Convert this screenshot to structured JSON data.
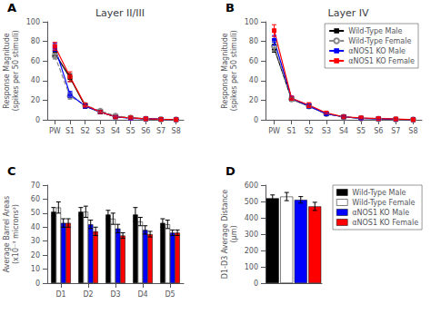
{
  "chart_data": [
    {
      "type": "line",
      "title": "Layer II/III",
      "annotations": [
        "A"
      ],
      "categories": [
        "PW",
        "S1",
        "S2",
        "S3",
        "S4",
        "S5",
        "S6",
        "S7",
        "S8"
      ],
      "ylabel": "Response Magnitude\n(spikes per 50 stimuli)",
      "ylim": [
        0,
        100
      ],
      "yticks": [
        0,
        20,
        40,
        60,
        80,
        100
      ],
      "grid": false,
      "series": [
        {
          "color": "#000000",
          "marker": "square",
          "line_style": "solid",
          "values": [
            68,
            43,
            14,
            8,
            3,
            2,
            1,
            0.5,
            0.3
          ],
          "errors": [
            3,
            4,
            2,
            1.5,
            0.8,
            0.5,
            0.3,
            0.2,
            0.1
          ]
        },
        {
          "color": "#888888",
          "marker": "open_circle",
          "line_style": "dashed",
          "values": [
            65,
            24,
            15,
            9,
            4,
            2,
            1,
            0.5,
            0.3
          ],
          "errors": [
            3,
            3,
            2,
            1.5,
            0.8,
            0.5,
            0.3,
            0.2,
            0.1
          ]
        },
        {
          "color": "#0000FF",
          "marker": "square",
          "line_style": "solid",
          "values": [
            74,
            26,
            14,
            8,
            3,
            1.5,
            1,
            0.5,
            0.2
          ],
          "errors": [
            4,
            3,
            2,
            1.5,
            0.8,
            0.4,
            0.3,
            0.2,
            0.1
          ]
        },
        {
          "color": "#FF0000",
          "marker": "square",
          "line_style": "solid",
          "values": [
            75,
            44,
            15,
            8,
            3,
            2,
            1,
            0.5,
            0.2
          ],
          "errors": [
            4,
            5,
            2,
            1.5,
            0.8,
            0.5,
            0.3,
            0.2,
            0.1
          ]
        }
      ]
    },
    {
      "type": "line",
      "title": "Layer IV",
      "annotations": [
        "B"
      ],
      "categories": [
        "PW",
        "S1",
        "S2",
        "S3",
        "S4",
        "S5",
        "S6",
        "S7",
        "S8"
      ],
      "ylabel": "Response Magnitude\n(spikes per 50 stimuli)",
      "ylim": [
        0,
        100
      ],
      "yticks": [
        0,
        20,
        40,
        60,
        80,
        100
      ],
      "grid": false,
      "legend": "upper right",
      "series": [
        {
          "name": "Wild-Type Male",
          "color": "#000000",
          "marker": "square",
          "line_style": "solid",
          "values": [
            73,
            21,
            14,
            6,
            3,
            1.5,
            1,
            0.5,
            0.2
          ],
          "errors": [
            4,
            2,
            2,
            1,
            0.8,
            0.5,
            0.3,
            0.2,
            0.1
          ]
        },
        {
          "name": "Wild-Type Female",
          "color": "#888888",
          "marker": "open_circle",
          "line_style": "dashed",
          "values": [
            75,
            21,
            14,
            6,
            3,
            1.5,
            1,
            0.5,
            0.2
          ],
          "errors": [
            5,
            2,
            2,
            1,
            0.8,
            0.5,
            0.3,
            0.2,
            0.1
          ]
        },
        {
          "name": "αNOS1 KO Male",
          "color": "#0000FF",
          "marker": "square",
          "line_style": "solid",
          "values": [
            81,
            22,
            14,
            6,
            3,
            1.5,
            1,
            0.5,
            0.2
          ],
          "errors": [
            5,
            2,
            2,
            1,
            0.8,
            0.5,
            0.3,
            0.2,
            0.1
          ]
        },
        {
          "name": "αNOS1 KO Female",
          "color": "#FF0000",
          "marker": "square",
          "line_style": "solid",
          "values": [
            91,
            22,
            15,
            7,
            3,
            2,
            1.2,
            0.8,
            0.2
          ],
          "errors": [
            6,
            2,
            2.5,
            1,
            0.8,
            0.5,
            0.3,
            0.2,
            0.1
          ]
        }
      ]
    },
    {
      "type": "bar",
      "annotations": [
        "C"
      ],
      "categories": [
        "D1",
        "D2",
        "D3",
        "D4",
        "D5"
      ],
      "ylabel": "Average Barrel Areas\n(x10⁻³ microns²)",
      "ylim": [
        0,
        70
      ],
      "yticks": [
        0,
        10,
        20,
        30,
        40,
        50,
        60,
        70
      ],
      "grid": false,
      "legend": "right",
      "series": [
        {
          "name": "Wild-Type Male",
          "color": "#000000",
          "values": [
            51,
            51,
            49,
            49,
            43
          ],
          "errors": [
            3,
            3,
            3,
            5,
            3
          ]
        },
        {
          "name": "Wild-Type Female",
          "color": "#FFFFFF",
          "values": [
            54,
            51,
            46,
            44,
            42
          ],
          "errors": [
            4,
            4,
            4,
            3,
            3
          ]
        },
        {
          "name": "αNOS1 KO Male",
          "color": "#0000FF",
          "values": [
            43,
            42,
            39,
            38,
            36
          ],
          "errors": [
            3,
            3,
            3,
            3,
            2
          ]
        },
        {
          "name": "αNOS1 KO Female",
          "color": "#FF0000",
          "values": [
            43,
            37,
            34,
            35,
            36
          ],
          "errors": [
            3,
            3,
            2,
            2,
            2
          ]
        }
      ]
    },
    {
      "type": "bar",
      "annotations": [
        "D"
      ],
      "categories": [
        null,
        null,
        null,
        null
      ],
      "values": [
        520,
        530,
        510,
        470
      ],
      "errors": [
        20,
        25,
        20,
        25
      ],
      "colors": [
        "#000000",
        "#FFFFFF",
        "#0000FF",
        "#FF0000"
      ],
      "ylabel": "D1-D3 Average Distance\n(μm)",
      "ylim": [
        0,
        600
      ],
      "yticks": [
        0,
        100,
        200,
        300,
        400,
        500,
        600
      ],
      "grid": false,
      "tick_labels": "y"
    }
  ]
}
